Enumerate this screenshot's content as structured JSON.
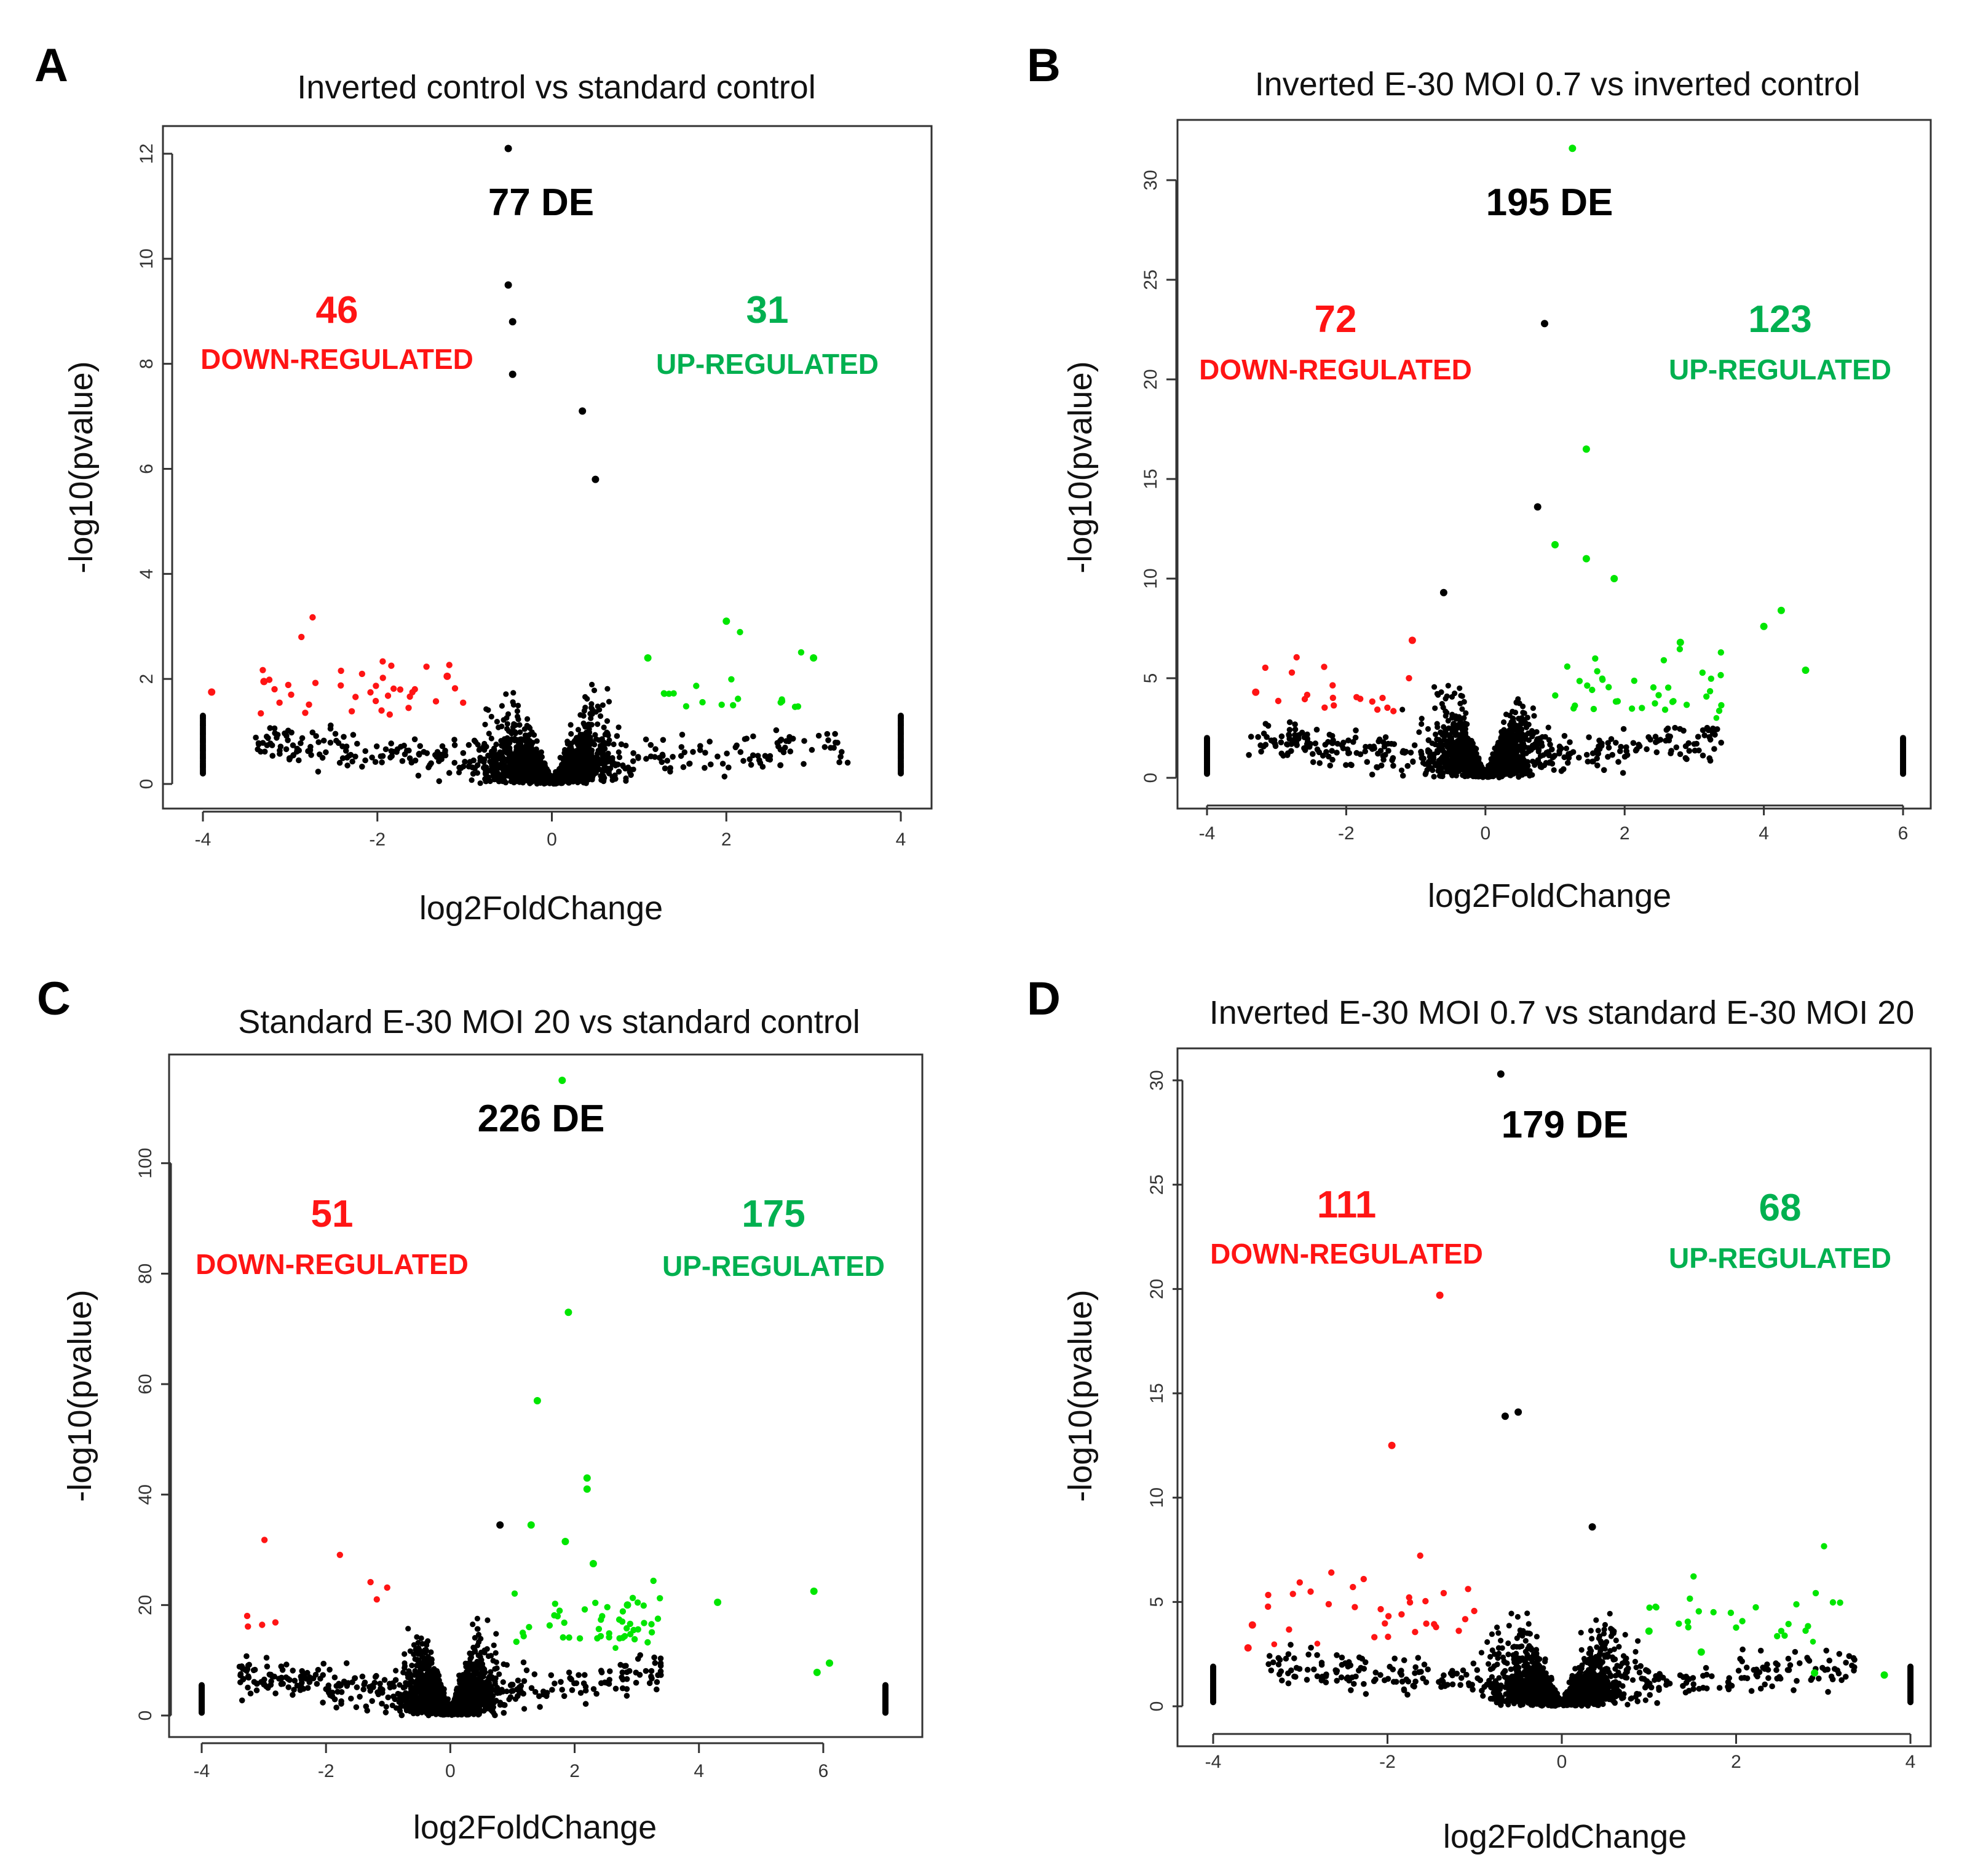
{
  "colors": {
    "down": "#ff1414",
    "up": "#00e600",
    "up_text": "#00b050",
    "ns": "#000000"
  },
  "chart_data": [
    {
      "panel": "A",
      "type": "scatter",
      "title": "Inverted control vs standard control",
      "xlabel": "log2FoldChange",
      "ylabel": "-log10(pvalue)",
      "xlim": [
        -4,
        4
      ],
      "ylim": [
        0,
        12
      ],
      "xticks": [
        -4,
        -2,
        0,
        2,
        4
      ],
      "yticks": [
        0,
        2,
        4,
        6,
        8,
        10,
        12
      ],
      "de_total": "77 DE",
      "down_count": "46",
      "down_label": "DOWN-REGULATED",
      "up_count": "31",
      "up_label": "UP-REGULATED",
      "edge_columns": {
        "left_x": -4,
        "right_x": 4,
        "ymin": 0.2,
        "ymax": 1.3
      },
      "notable_points": [
        {
          "x": -0.5,
          "y": 12.1,
          "group": "ns"
        },
        {
          "x": -0.5,
          "y": 9.5,
          "group": "ns"
        },
        {
          "x": -0.45,
          "y": 8.8,
          "group": "ns"
        },
        {
          "x": -0.45,
          "y": 7.8,
          "group": "ns"
        },
        {
          "x": 0.35,
          "y": 7.1,
          "group": "ns"
        },
        {
          "x": 0.5,
          "y": 5.8,
          "group": "ns"
        },
        {
          "x": 2.0,
          "y": 3.1,
          "group": "up"
        },
        {
          "x": 3.0,
          "y": 2.4,
          "group": "up"
        },
        {
          "x": 1.1,
          "y": 2.4,
          "group": "up"
        },
        {
          "x": -3.9,
          "y": 1.75,
          "group": "down"
        },
        {
          "x": -3.3,
          "y": 1.95,
          "group": "down"
        },
        {
          "x": -1.2,
          "y": 2.05,
          "group": "down"
        }
      ]
    },
    {
      "panel": "B",
      "type": "scatter",
      "title": "Inverted E-30 MOI 0.7 vs inverted control",
      "xlabel": "log2FoldChange",
      "ylabel": "-log10(pvalue)",
      "xlim": [
        -4,
        6
      ],
      "ylim": [
        0,
        30
      ],
      "xticks": [
        -4,
        -2,
        0,
        2,
        4,
        6
      ],
      "yticks": [
        0,
        5,
        10,
        15,
        20,
        25,
        30
      ],
      "de_total": "195 DE",
      "down_count": "72",
      "down_label": "DOWN-REGULATED",
      "up_count": "123",
      "up_label": "UP-REGULATED",
      "edge_columns": {
        "left_x": -4,
        "right_x": 6,
        "ymin": 0.2,
        "ymax": 2.0
      },
      "notable_points": [
        {
          "x": 1.25,
          "y": 31.6,
          "group": "up"
        },
        {
          "x": 0.85,
          "y": 22.8,
          "group": "ns"
        },
        {
          "x": 1.45,
          "y": 16.5,
          "group": "up"
        },
        {
          "x": 0.75,
          "y": 13.6,
          "group": "ns"
        },
        {
          "x": 1.45,
          "y": 11.0,
          "group": "up"
        },
        {
          "x": 1.0,
          "y": 11.7,
          "group": "up"
        },
        {
          "x": 1.85,
          "y": 10.0,
          "group": "up"
        },
        {
          "x": 4.25,
          "y": 8.4,
          "group": "up"
        },
        {
          "x": 4.0,
          "y": 7.6,
          "group": "up"
        },
        {
          "x": 4.6,
          "y": 5.4,
          "group": "up"
        },
        {
          "x": 2.8,
          "y": 6.8,
          "group": "up"
        },
        {
          "x": -0.6,
          "y": 9.3,
          "group": "ns"
        },
        {
          "x": -3.3,
          "y": 4.3,
          "group": "down"
        },
        {
          "x": -1.05,
          "y": 6.9,
          "group": "down"
        }
      ]
    },
    {
      "panel": "C",
      "type": "scatter",
      "title": "Standard E-30 MOI 20 vs standard control",
      "xlabel": "log2FoldChange",
      "ylabel": "-log10(pvalue)",
      "xlim": [
        -4,
        7
      ],
      "ylim": [
        0,
        115
      ],
      "xticks": [
        -4,
        -2,
        0,
        2,
        4,
        6
      ],
      "yticks": [
        0,
        20,
        40,
        60,
        80,
        100
      ],
      "de_total": "226 DE",
      "down_count": "51",
      "down_label": "DOWN-REGULATED",
      "up_count": "175",
      "up_label": "UP-REGULATED",
      "edge_columns": {
        "left_x": -4,
        "right_x": 7,
        "ymin": 0.5,
        "ymax": 5.5
      },
      "notable_points": [
        {
          "x": 1.8,
          "y": 115,
          "group": "up"
        },
        {
          "x": 1.9,
          "y": 73,
          "group": "up"
        },
        {
          "x": 1.4,
          "y": 57,
          "group": "up"
        },
        {
          "x": 2.2,
          "y": 43,
          "group": "up"
        },
        {
          "x": 2.2,
          "y": 41,
          "group": "up"
        },
        {
          "x": 1.3,
          "y": 34.5,
          "group": "up"
        },
        {
          "x": 0.8,
          "y": 34.5,
          "group": "ns"
        },
        {
          "x": 1.85,
          "y": 31.5,
          "group": "up"
        },
        {
          "x": 2.3,
          "y": 27.5,
          "group": "up"
        },
        {
          "x": 5.85,
          "y": 22.5,
          "group": "up"
        },
        {
          "x": 4.3,
          "y": 20.5,
          "group": "up"
        },
        {
          "x": 6.1,
          "y": 9.5,
          "group": "up"
        },
        {
          "x": 5.9,
          "y": 7.8,
          "group": "up"
        },
        {
          "x": 2.85,
          "y": 20,
          "group": "up"
        }
      ]
    },
    {
      "panel": "D",
      "type": "scatter",
      "title": "Inverted E-30 MOI 0.7 vs standard E-30 MOI 20",
      "xlabel": "log2FoldChange",
      "ylabel": "-log10(pvalue)",
      "xlim": [
        -4,
        4
      ],
      "ylim": [
        0,
        30
      ],
      "xticks": [
        -4,
        -2,
        0,
        2,
        4
      ],
      "yticks": [
        0,
        5,
        10,
        15,
        20,
        25,
        30
      ],
      "de_total": "179 DE",
      "down_count": "111",
      "down_label": "DOWN-REGULATED",
      "up_count": "68",
      "up_label": "UP-REGULATED",
      "edge_columns": {
        "left_x": -4,
        "right_x": 4,
        "ymin": 0.2,
        "ymax": 1.9
      },
      "notable_points": [
        {
          "x": -0.7,
          "y": 30.3,
          "group": "ns"
        },
        {
          "x": -1.4,
          "y": 19.7,
          "group": "down"
        },
        {
          "x": -0.5,
          "y": 14.1,
          "group": "ns"
        },
        {
          "x": -0.65,
          "y": 13.9,
          "group": "ns"
        },
        {
          "x": -1.95,
          "y": 12.5,
          "group": "down"
        },
        {
          "x": -3.55,
          "y": 3.9,
          "group": "down"
        },
        {
          "x": -3.6,
          "y": 2.8,
          "group": "down"
        },
        {
          "x": 0.35,
          "y": 8.6,
          "group": "ns"
        },
        {
          "x": 1.0,
          "y": 3.6,
          "group": "up"
        },
        {
          "x": 1.6,
          "y": 2.6,
          "group": "up"
        },
        {
          "x": 2.9,
          "y": 1.6,
          "group": "up"
        },
        {
          "x": 3.7,
          "y": 1.5,
          "group": "up"
        }
      ]
    }
  ]
}
